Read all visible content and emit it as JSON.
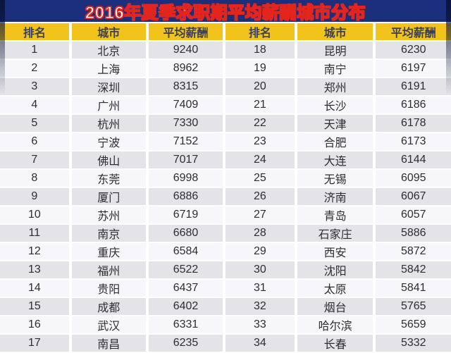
{
  "title": "2016年夏季求职期平均薪酬城市分布",
  "colors": {
    "page_bg": "#ffffff",
    "title_bar_bg": "#1b2f7d",
    "title_text": "#ffffff",
    "title_outline": "#e2251d",
    "header_bg": "#f2c41b",
    "header_text": "#3a4156",
    "row_odd_bg": "#e4e3e8",
    "row_even_bg": "#f7f6fa",
    "cell_text": "#2d2d32"
  },
  "table": {
    "headers": [
      "排名",
      "城市",
      "平均薪酬",
      "排名",
      "城市",
      "平均薪酬"
    ]
  },
  "chart_data": {
    "type": "table",
    "title": "2016年夏季求职期平均薪酬城市分布",
    "columns": [
      "排名",
      "城市",
      "平均薪酬"
    ],
    "layout": "two panels side by side: ranks 1-17 in left panel, ranks 18-34 in right panel; alternating striped rows",
    "rows": [
      [
        1,
        "北京",
        9240
      ],
      [
        2,
        "上海",
        8962
      ],
      [
        3,
        "深圳",
        8315
      ],
      [
        4,
        "广州",
        7409
      ],
      [
        5,
        "杭州",
        7330
      ],
      [
        6,
        "宁波",
        7152
      ],
      [
        7,
        "佛山",
        7017
      ],
      [
        8,
        "东莞",
        6998
      ],
      [
        9,
        "厦门",
        6886
      ],
      [
        10,
        "苏州",
        6719
      ],
      [
        11,
        "南京",
        6680
      ],
      [
        12,
        "重庆",
        6584
      ],
      [
        13,
        "福州",
        6522
      ],
      [
        14,
        "贵阳",
        6437
      ],
      [
        15,
        "成都",
        6402
      ],
      [
        16,
        "武汉",
        6331
      ],
      [
        17,
        "南昌",
        6235
      ],
      [
        18,
        "昆明",
        6230
      ],
      [
        19,
        "南宁",
        6197
      ],
      [
        20,
        "郑州",
        6191
      ],
      [
        21,
        "长沙",
        6186
      ],
      [
        22,
        "天津",
        6178
      ],
      [
        23,
        "合肥",
        6173
      ],
      [
        24,
        "大连",
        6144
      ],
      [
        25,
        "无锡",
        6095
      ],
      [
        26,
        "济南",
        6067
      ],
      [
        27,
        "青岛",
        6057
      ],
      [
        28,
        "石家庄",
        5886
      ],
      [
        29,
        "西安",
        5872
      ],
      [
        30,
        "沈阳",
        5842
      ],
      [
        31,
        "太原",
        5841
      ],
      [
        32,
        "烟台",
        5765
      ],
      [
        33,
        "哈尔滨",
        5659
      ],
      [
        34,
        "长春",
        5332
      ]
    ]
  }
}
